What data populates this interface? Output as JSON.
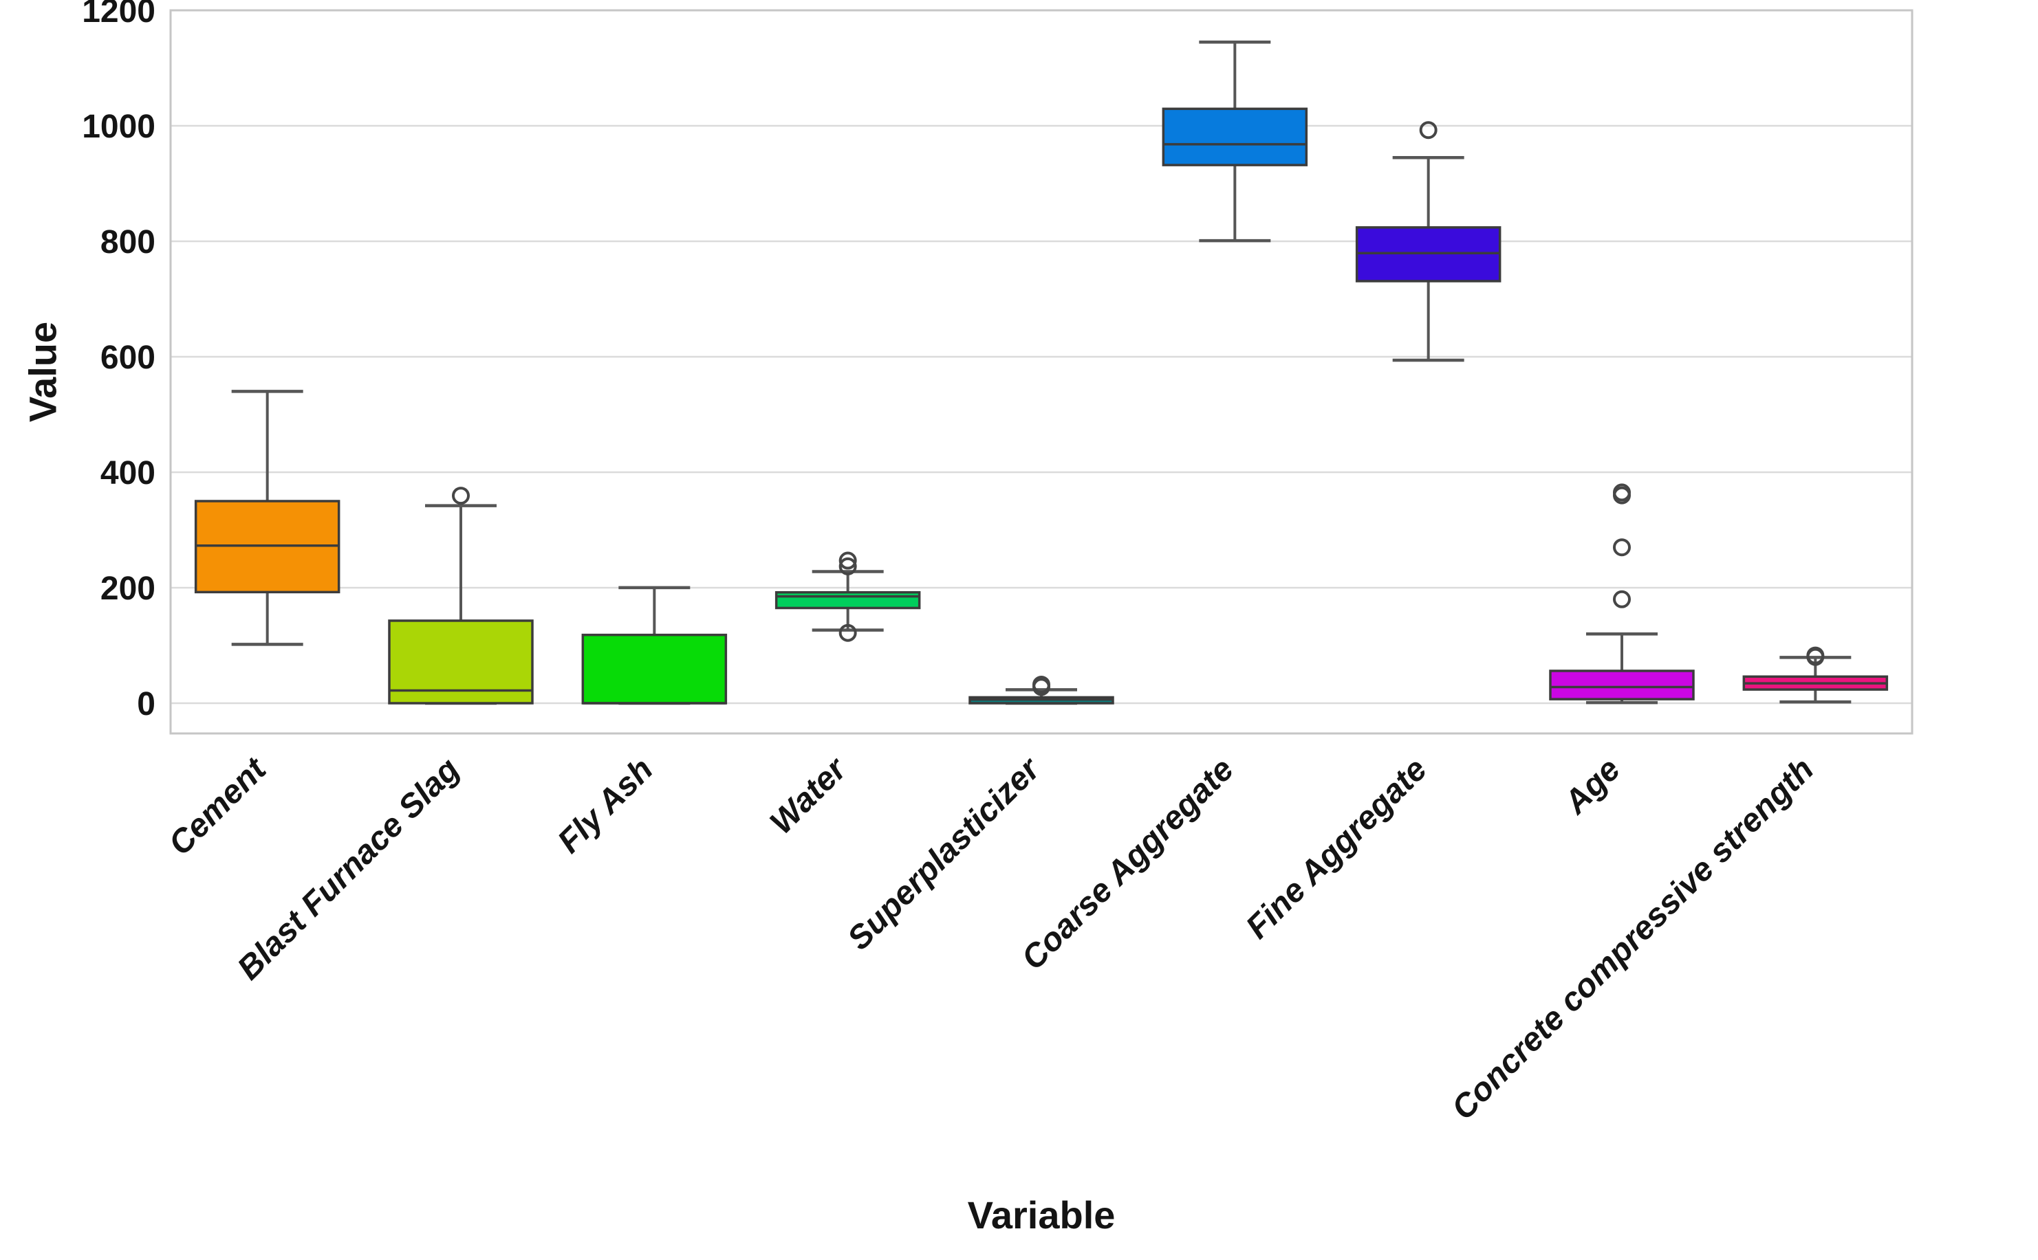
{
  "chart_data": {
    "type": "boxplot",
    "title": "",
    "xlabel": "Variable",
    "ylabel": "Value",
    "ylim": [
      -52,
      1200
    ],
    "yticks": [
      0,
      200,
      400,
      600,
      800,
      1000,
      1200
    ],
    "grid": "horizontal-only",
    "legend": "none",
    "categories": [
      "Cement",
      "Blast Furnace Slag",
      "Fly Ash",
      "Water",
      "Superplasticizer",
      "Coarse Aggregate",
      "Fine Aggregate",
      "Age",
      "Concrete compressive strength"
    ],
    "series": [
      {
        "name": "Cement",
        "color": "#F59105",
        "whisker_low": 102,
        "q1": 192.4,
        "median": 272.9,
        "q3": 350,
        "whisker_high": 540,
        "outliers": []
      },
      {
        "name": "Blast Furnace Slag",
        "color": "#AAD606",
        "whisker_low": 0,
        "q1": 0,
        "median": 22,
        "q3": 142.9,
        "whisker_high": 342.1,
        "outliers": [
          359.4
        ]
      },
      {
        "name": "Fly Ash",
        "color": "#07DB07",
        "whisker_low": 0,
        "q1": 0,
        "median": 0,
        "q3": 118.3,
        "whisker_high": 200.1,
        "outliers": []
      },
      {
        "name": "Water",
        "color": "#00CE5C",
        "whisker_low": 126.6,
        "q1": 164.9,
        "median": 185,
        "q3": 192,
        "whisker_high": 228,
        "outliers": [
          121.8,
          237,
          247
        ]
      },
      {
        "name": "Superplasticizer",
        "color": "#0A8080",
        "whisker_low": 0,
        "q1": 0,
        "median": 6.4,
        "q3": 10.2,
        "whisker_high": 23.4,
        "outliers": [
          28.2,
          32.2
        ]
      },
      {
        "name": "Coarse Aggregate",
        "color": "#077BDD",
        "whisker_low": 801,
        "q1": 932,
        "median": 968,
        "q3": 1029.4,
        "whisker_high": 1145,
        "outliers": []
      },
      {
        "name": "Fine Aggregate",
        "color": "#3A0BDC",
        "whisker_low": 594,
        "q1": 731,
        "median": 779.5,
        "q3": 824,
        "whisker_high": 945,
        "outliers": [
          992.6
        ]
      },
      {
        "name": "Age",
        "color": "#CB06E3",
        "whisker_low": 1,
        "q1": 7,
        "median": 28,
        "q3": 56,
        "whisker_high": 120,
        "outliers": [
          180,
          270,
          360,
          365
        ]
      },
      {
        "name": "Concrete compressive strength",
        "color": "#EB147E",
        "whisker_low": 2.3,
        "q1": 23.7,
        "median": 34.4,
        "q3": 46.1,
        "whisker_high": 79.3,
        "outliers": [
          80.2,
          82.6
        ]
      }
    ],
    "style": {
      "background": "#FFFFFF",
      "gridline_color": "#DBDBDB",
      "plot_border_color": "#C6C6C6",
      "box_edge_color": "#3C3C3C",
      "whisker_color": "#565656",
      "outlier_edge_color": "#464646",
      "text_color": "#141414"
    }
  }
}
